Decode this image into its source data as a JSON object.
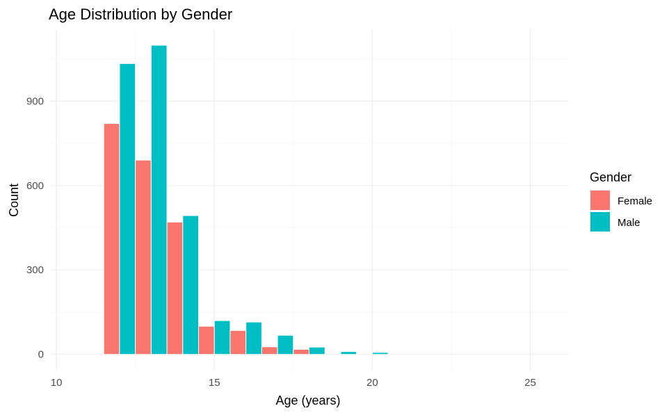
{
  "chart_data": {
    "type": "bar",
    "title": "Age Distribution by Gender",
    "xlabel": "Age (years)",
    "ylabel": "Count",
    "xlim": [
      9.8,
      26.2
    ],
    "ylim": [
      -55,
      1155
    ],
    "x_ticks": [
      10,
      15,
      20,
      25
    ],
    "y_ticks": [
      0,
      300,
      600,
      900
    ],
    "grid": true,
    "legend_title": "Gender",
    "legend_position": "right",
    "bin_width": 1,
    "bin_centers": [
      11,
      12,
      13,
      14,
      15,
      16,
      17,
      18,
      19,
      20,
      21,
      22,
      23,
      24,
      25
    ],
    "series": [
      {
        "name": "Female",
        "color": "#F8766D",
        "values": [
          0,
          820,
          690,
          470,
          100,
          85,
          27,
          18,
          0,
          0,
          0,
          0,
          0,
          0,
          0
        ]
      },
      {
        "name": "Male",
        "color": "#00BFC4",
        "values": [
          0,
          1033,
          1098,
          493,
          120,
          115,
          68,
          26,
          10,
          7,
          0,
          0,
          0,
          0,
          0
        ]
      }
    ]
  }
}
